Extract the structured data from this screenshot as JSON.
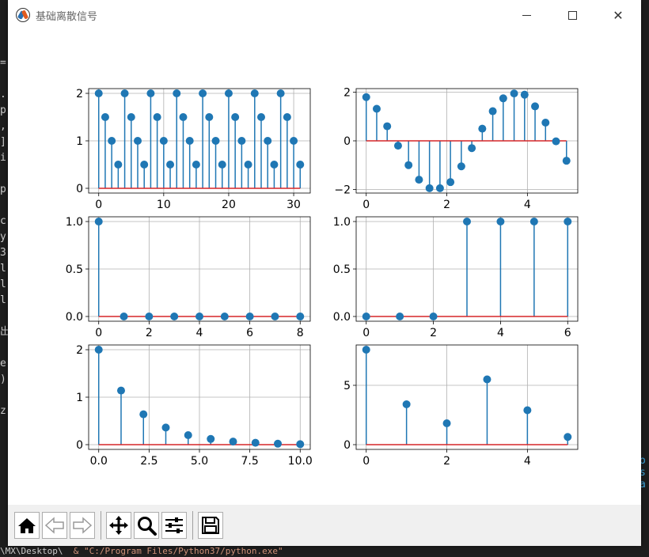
{
  "window": {
    "title": "基础离散信号"
  },
  "toolbar": {
    "buttons": [
      {
        "name": "home-button",
        "icon": "home-icon"
      },
      {
        "name": "back-button",
        "icon": "arrow-left-icon"
      },
      {
        "name": "forward-button",
        "icon": "arrow-right-icon"
      },
      {
        "name": "pan-button",
        "icon": "move-icon"
      },
      {
        "name": "zoom-button",
        "icon": "magnifier-icon"
      },
      {
        "name": "configure-subplots-button",
        "icon": "sliders-icon"
      },
      {
        "name": "save-button",
        "icon": "floppy-icon"
      }
    ]
  },
  "colors": {
    "stem": "#1f77b4",
    "baseline": "#d62728",
    "grid": "#b0b0b0"
  },
  "chart_data": [
    {
      "type": "stem",
      "x": [
        0,
        1,
        2,
        3,
        4,
        5,
        6,
        7,
        8,
        9,
        10,
        11,
        12,
        13,
        14,
        15,
        16,
        17,
        18,
        19,
        20,
        21,
        22,
        23,
        24,
        25,
        26,
        27,
        28,
        29,
        30,
        31
      ],
      "values": [
        2,
        1.5,
        1,
        0.5,
        2,
        1.5,
        1,
        0.5,
        2,
        1.5,
        1,
        0.5,
        2,
        1.5,
        1,
        0.5,
        2,
        1.5,
        1,
        0.5,
        2,
        1.5,
        1,
        0.5,
        2,
        1.5,
        1,
        0.5,
        2,
        1.5,
        1,
        0.5
      ],
      "xlim": [
        -1.55,
        32.55
      ],
      "ylim": [
        -0.1,
        2.1
      ],
      "xticks": [
        0,
        10,
        20,
        30
      ],
      "yticks": [
        0,
        1,
        2
      ],
      "xtick_labels": [
        "0",
        "10",
        "20",
        "30"
      ],
      "ytick_labels": [
        "0",
        "1",
        "2"
      ],
      "grid": true
    },
    {
      "type": "stem",
      "x": [
        0,
        0.26,
        0.52,
        0.79,
        1.05,
        1.31,
        1.57,
        1.83,
        2.09,
        2.36,
        2.62,
        2.88,
        3.14,
        3.4,
        3.67,
        3.93,
        4.19,
        4.45,
        4.71,
        4.97
      ],
      "values": [
        1.8,
        1.32,
        0.6,
        -0.2,
        -1.0,
        -1.6,
        -1.95,
        -1.95,
        -1.7,
        -1.05,
        -0.3,
        0.5,
        1.22,
        1.75,
        1.95,
        1.9,
        1.42,
        0.75,
        -0.02,
        -0.82
      ],
      "xlim": [
        -0.25,
        5.25
      ],
      "ylim": [
        -2.15,
        2.15
      ],
      "xticks": [
        0,
        2,
        4
      ],
      "yticks": [
        -2,
        0,
        2
      ],
      "xtick_labels": [
        "0",
        "2",
        "4"
      ],
      "ytick_labels": [
        "−2",
        "0",
        "2"
      ],
      "grid": true
    },
    {
      "type": "stem",
      "x": [
        0,
        1,
        2,
        3,
        4,
        5,
        6,
        7,
        8
      ],
      "values": [
        1,
        0,
        0,
        0,
        0,
        0,
        0,
        0,
        0
      ],
      "xlim": [
        -0.4,
        8.4
      ],
      "ylim": [
        -0.05,
        1.05
      ],
      "xticks": [
        0,
        2,
        4,
        6,
        8
      ],
      "yticks": [
        0,
        0.5,
        1
      ],
      "xtick_labels": [
        "0",
        "2",
        "4",
        "6",
        "8"
      ],
      "ytick_labels": [
        "0.0",
        "0.5",
        "1.0"
      ],
      "grid": true
    },
    {
      "type": "stem",
      "x": [
        0,
        1,
        2,
        3,
        4,
        5,
        6
      ],
      "values": [
        0,
        0,
        0,
        1,
        1,
        1,
        1
      ],
      "xlim": [
        -0.3,
        6.3
      ],
      "ylim": [
        -0.05,
        1.05
      ],
      "xticks": [
        0,
        2,
        4,
        6
      ],
      "yticks": [
        0,
        0.5,
        1
      ],
      "xtick_labels": [
        "0",
        "2",
        "4",
        "6"
      ],
      "ytick_labels": [
        "0.0",
        "0.5",
        "1.0"
      ],
      "grid": true
    },
    {
      "type": "stem",
      "x": [
        0,
        1.11,
        2.22,
        3.33,
        4.44,
        5.56,
        6.67,
        7.78,
        8.89,
        10
      ],
      "values": [
        2,
        1.14,
        0.64,
        0.36,
        0.2,
        0.12,
        0.065,
        0.04,
        0.02,
        0.01
      ],
      "xlim": [
        -0.5,
        10.5
      ],
      "ylim": [
        -0.1,
        2.1
      ],
      "xticks": [
        0,
        2.5,
        5,
        7.5,
        10
      ],
      "yticks": [
        0,
        1,
        2
      ],
      "xtick_labels": [
        "0.0",
        "2.5",
        "5.0",
        "7.5",
        "10.0"
      ],
      "ytick_labels": [
        "0",
        "1",
        "2"
      ],
      "grid": true
    },
    {
      "type": "stem",
      "x": [
        0,
        1,
        2,
        3,
        4,
        5
      ],
      "values": [
        8,
        3.4,
        1.8,
        5.5,
        2.9,
        0.65
      ],
      "xlim": [
        -0.25,
        5.25
      ],
      "ylim": [
        -0.4,
        8.4
      ],
      "xticks": [
        0,
        2,
        4
      ],
      "yticks": [
        0,
        5
      ],
      "xtick_labels": [
        "0",
        "2",
        "4"
      ],
      "ytick_labels": [
        "0",
        "5"
      ],
      "grid": true
    }
  ]
}
